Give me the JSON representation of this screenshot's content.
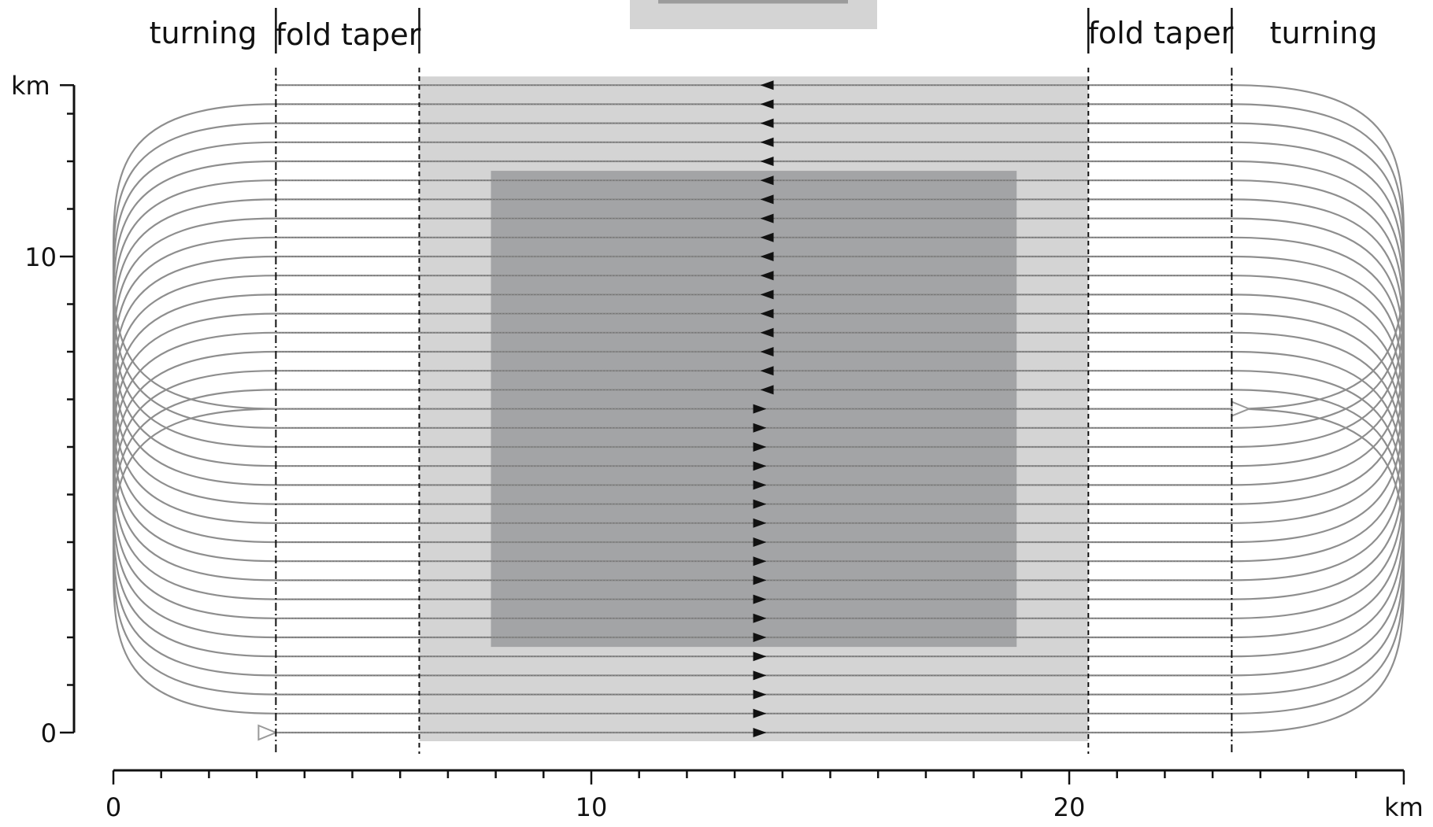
{
  "zone_labels": {
    "left_turning": "turning",
    "left_fold_taper": "fold taper",
    "right_fold_taper": "fold taper",
    "right_turning": "turning"
  },
  "x_axis": {
    "unit": "km",
    "major_ticks": [
      0,
      10,
      20
    ],
    "minor_step": 1,
    "range": [
      0,
      27
    ]
  },
  "y_axis": {
    "unit": "km",
    "labeled_ticks": [
      0,
      10
    ],
    "minor_step": 1,
    "range": [
      0,
      13.6
    ]
  },
  "zones": {
    "turning_left": [
      0,
      3.4
    ],
    "fold_taper_left": [
      3.4,
      6.4
    ],
    "full_fold": [
      6.4,
      20.4
    ],
    "fold_taper_right": [
      20.4,
      23.4
    ],
    "turning_right": [
      23.4,
      27
    ],
    "inner_area_x": [
      7.9,
      18.9
    ],
    "inner_area_y": [
      1.8,
      11.8
    ]
  },
  "sail_lines": {
    "count": 35,
    "spacing_km": 0.4,
    "first_y_km": 0,
    "eastbound_count": 18,
    "westbound_count": 17,
    "arrow_x_km": 13.6,
    "start_marker_y_km": 0,
    "end_marker_y_km": 6.8
  },
  "colors": {
    "outer_area": "#d4d4d4",
    "inner_area": "#a3a4a6",
    "line": "#8e8e8e",
    "arrow": "#111111",
    "hollow_marker": "#999999",
    "axis": "#111111"
  }
}
